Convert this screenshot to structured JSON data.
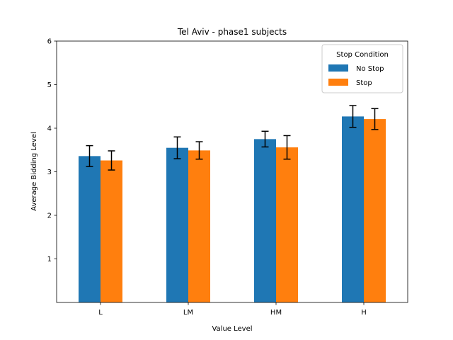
{
  "chart_data": {
    "type": "bar",
    "title": "Tel Aviv - phase1 subjects",
    "xlabel": "Value Level",
    "ylabel": "Average Bidding Level",
    "categories": [
      "L",
      "LM",
      "HM",
      "H"
    ],
    "ylim": [
      0,
      6
    ],
    "yticks": [
      1,
      2,
      3,
      4,
      5,
      6
    ],
    "grid": false,
    "legend": {
      "title": "Stop Condition",
      "placement": "top-right"
    },
    "series": [
      {
        "name": "No Stop",
        "color": "#1f77b4",
        "values": [
          3.36,
          3.55,
          3.75,
          4.27
        ],
        "errors": [
          0.24,
          0.25,
          0.18,
          0.25
        ]
      },
      {
        "name": "Stop",
        "color": "#ff7f0e",
        "values": [
          3.26,
          3.49,
          3.56,
          4.21
        ],
        "errors": [
          0.22,
          0.2,
          0.27,
          0.24
        ]
      }
    ]
  }
}
